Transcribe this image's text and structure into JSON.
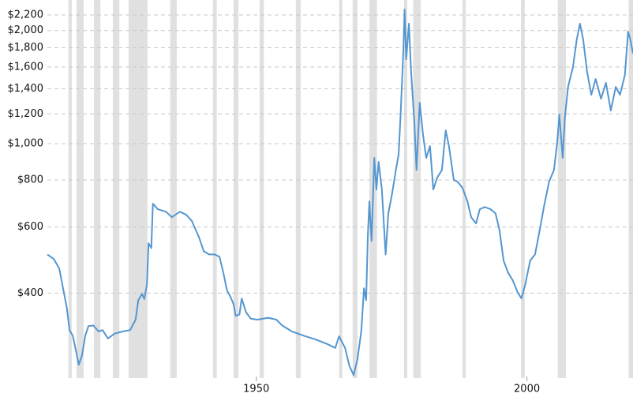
{
  "chart_data": {
    "type": "line",
    "log_scale_y": true,
    "grid": true,
    "shade_color": "#e0e0e0",
    "shaded_regions": [
      [
        1915.3,
        1915.9
      ],
      [
        1916.8,
        1918.1
      ],
      [
        1920.0,
        1921.2
      ],
      [
        1923.5,
        1924.7
      ],
      [
        1926.4,
        1929.9
      ],
      [
        1934.1,
        1935.3
      ],
      [
        1942.0,
        1942.7
      ],
      [
        1945.8,
        1946.7
      ],
      [
        1950.6,
        1951.4
      ],
      [
        1957.3,
        1958.2
      ],
      [
        1965.3,
        1965.9
      ],
      [
        1967.8,
        1968.7
      ],
      [
        1970.9,
        1972.3
      ],
      [
        1977.3,
        1977.9
      ],
      [
        1979.0,
        1980.4
      ],
      [
        1988.1,
        1988.7
      ],
      [
        1998.9,
        1999.6
      ],
      [
        2005.7,
        2007.2
      ],
      [
        2018.8,
        2019.6
      ]
    ],
    "xlim": [
      1911.4,
      2019.6
    ],
    "xticks": [
      1950,
      2000
    ],
    "ylim": [
      240,
      2400
    ],
    "yticks": [
      {
        "value": 400,
        "label": "$400"
      },
      {
        "value": 600,
        "label": "$600"
      },
      {
        "value": 800,
        "label": "$800"
      },
      {
        "value": 1000,
        "label": "$1,000"
      },
      {
        "value": 1200,
        "label": "$1,200"
      },
      {
        "value": 1400,
        "label": "$1,400"
      },
      {
        "value": 1600,
        "label": "$1,600"
      },
      {
        "value": 1800,
        "label": "$1,800"
      },
      {
        "value": 2000,
        "label": "$2,000"
      },
      {
        "value": 2200,
        "label": "$2,200"
      }
    ],
    "series": [
      {
        "color": "#5496d0",
        "x": [
          1911.4,
          1912.6,
          1913.6,
          1914.3,
          1915.0,
          1915.5,
          1916.1,
          1916.8,
          1917.2,
          1917.8,
          1918.4,
          1919.0,
          1919.9,
          1920.9,
          1921.6,
          1922.6,
          1923.8,
          1925.2,
          1926.7,
          1927.7,
          1928.2,
          1928.9,
          1929.3,
          1929.8,
          1930.1,
          1930.6,
          1930.9,
          1931.8,
          1933.3,
          1934.4,
          1935.9,
          1937.1,
          1938.1,
          1939.4,
          1940.3,
          1941.3,
          1942.3,
          1943.2,
          1943.9,
          1944.6,
          1945.2,
          1945.8,
          1946.2,
          1946.9,
          1947.3,
          1948.1,
          1949.0,
          1950.2,
          1952.2,
          1953.7,
          1954.8,
          1956.6,
          1958.8,
          1961.0,
          1963.1,
          1964.6,
          1965.3,
          1966.4,
          1967.2,
          1968.0,
          1968.7,
          1969.4,
          1969.9,
          1970.3,
          1970.6,
          1970.9,
          1971.3,
          1971.8,
          1972.2,
          1972.6,
          1973.2,
          1973.9,
          1974.4,
          1975.1,
          1975.8,
          1976.3,
          1976.7,
          1977.2,
          1977.4,
          1977.7,
          1978.2,
          1978.6,
          1979.2,
          1979.6,
          1980.2,
          1980.8,
          1981.4,
          1982.1,
          1982.7,
          1983.4,
          1984.3,
          1985.0,
          1985.6,
          1986.5,
          1987.2,
          1988.1,
          1989.0,
          1989.7,
          1990.6,
          1991.3,
          1992.2,
          1993.3,
          1994.2,
          1994.9,
          1995.7,
          1996.5,
          1997.4,
          1998.3,
          1999.0,
          1999.7,
          2000.6,
          2001.5,
          2002.4,
          2003.2,
          2004.1,
          2005.0,
          2005.6,
          2006.0,
          2006.6,
          2007.0,
          2007.6,
          2008.5,
          2009.2,
          2009.8,
          2010.4,
          2011.1,
          2011.9,
          2012.7,
          2013.7,
          2014.6,
          2015.5,
          2016.4,
          2017.2,
          2018.1,
          2018.7,
          2019.1,
          2019.6
        ],
        "values": [
          507,
          493,
          465,
          412,
          365,
          319,
          308,
          276,
          258,
          273,
          308,
          327,
          328,
          316,
          319,
          303,
          312,
          316,
          319,
          340,
          383,
          398,
          386,
          422,
          543,
          527,
          692,
          669,
          659,
          637,
          659,
          646,
          622,
          564,
          517,
          507,
          507,
          500,
          454,
          406,
          392,
          374,
          348,
          351,
          387,
          356,
          342,
          340,
          344,
          340,
          328,
          316,
          308,
          301,
          293,
          286,
          307,
          286,
          256,
          242,
          267,
          316,
          412,
          383,
          564,
          702,
          551,
          916,
          755,
          894,
          755,
          507,
          652,
          737,
          851,
          938,
          1225,
          1804,
          2276,
          1678,
          2086,
          1559,
          1139,
          851,
          1285,
          1059,
          916,
          985,
          755,
          811,
          851,
          1085,
          985,
          800,
          792,
          762,
          702,
          637,
          613,
          669,
          678,
          669,
          652,
          592,
          488,
          454,
          432,
          402,
          387,
          422,
          488,
          507,
          592,
          685,
          792,
          851,
          1009,
          1195,
          916,
          1167,
          1416,
          1598,
          1893,
          2086,
          1893,
          1559,
          1349,
          1486,
          1317,
          1451,
          1225,
          1416,
          1349,
          1522,
          1987,
          1893,
          1735
        ]
      }
    ]
  }
}
